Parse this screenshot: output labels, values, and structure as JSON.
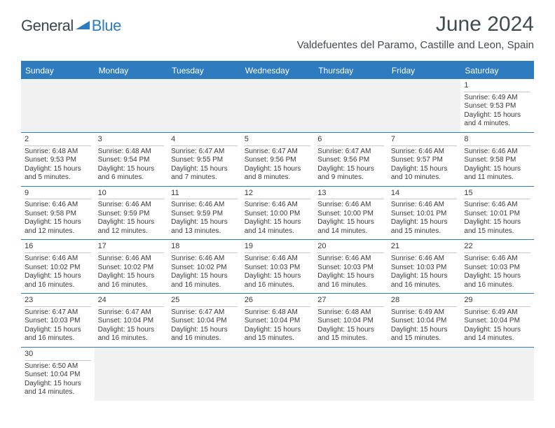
{
  "logo": {
    "dark": "General",
    "blue": "Blue"
  },
  "title": "June 2024",
  "subtitle": "Valdefuentes del Paramo, Castille and Leon, Spain",
  "colors": {
    "accent": "#2f7bbf",
    "headerText": "#ffffff",
    "bodyText": "#3a3a3a",
    "titleText": "#414b52",
    "blankBg": "#f1f1f1"
  },
  "dayNames": [
    "Sunday",
    "Monday",
    "Tuesday",
    "Wednesday",
    "Thursday",
    "Friday",
    "Saturday"
  ],
  "weeks": [
    [
      null,
      null,
      null,
      null,
      null,
      null,
      {
        "n": "1",
        "sr": "Sunrise: 6:49 AM",
        "ss": "Sunset: 9:53 PM",
        "d1": "Daylight: 15 hours",
        "d2": "and 4 minutes."
      }
    ],
    [
      {
        "n": "2",
        "sr": "Sunrise: 6:48 AM",
        "ss": "Sunset: 9:53 PM",
        "d1": "Daylight: 15 hours",
        "d2": "and 5 minutes."
      },
      {
        "n": "3",
        "sr": "Sunrise: 6:48 AM",
        "ss": "Sunset: 9:54 PM",
        "d1": "Daylight: 15 hours",
        "d2": "and 6 minutes."
      },
      {
        "n": "4",
        "sr": "Sunrise: 6:47 AM",
        "ss": "Sunset: 9:55 PM",
        "d1": "Daylight: 15 hours",
        "d2": "and 7 minutes."
      },
      {
        "n": "5",
        "sr": "Sunrise: 6:47 AM",
        "ss": "Sunset: 9:56 PM",
        "d1": "Daylight: 15 hours",
        "d2": "and 8 minutes."
      },
      {
        "n": "6",
        "sr": "Sunrise: 6:47 AM",
        "ss": "Sunset: 9:56 PM",
        "d1": "Daylight: 15 hours",
        "d2": "and 9 minutes."
      },
      {
        "n": "7",
        "sr": "Sunrise: 6:46 AM",
        "ss": "Sunset: 9:57 PM",
        "d1": "Daylight: 15 hours",
        "d2": "and 10 minutes."
      },
      {
        "n": "8",
        "sr": "Sunrise: 6:46 AM",
        "ss": "Sunset: 9:58 PM",
        "d1": "Daylight: 15 hours",
        "d2": "and 11 minutes."
      }
    ],
    [
      {
        "n": "9",
        "sr": "Sunrise: 6:46 AM",
        "ss": "Sunset: 9:58 PM",
        "d1": "Daylight: 15 hours",
        "d2": "and 12 minutes."
      },
      {
        "n": "10",
        "sr": "Sunrise: 6:46 AM",
        "ss": "Sunset: 9:59 PM",
        "d1": "Daylight: 15 hours",
        "d2": "and 12 minutes."
      },
      {
        "n": "11",
        "sr": "Sunrise: 6:46 AM",
        "ss": "Sunset: 9:59 PM",
        "d1": "Daylight: 15 hours",
        "d2": "and 13 minutes."
      },
      {
        "n": "12",
        "sr": "Sunrise: 6:46 AM",
        "ss": "Sunset: 10:00 PM",
        "d1": "Daylight: 15 hours",
        "d2": "and 14 minutes."
      },
      {
        "n": "13",
        "sr": "Sunrise: 6:46 AM",
        "ss": "Sunset: 10:00 PM",
        "d1": "Daylight: 15 hours",
        "d2": "and 14 minutes."
      },
      {
        "n": "14",
        "sr": "Sunrise: 6:46 AM",
        "ss": "Sunset: 10:01 PM",
        "d1": "Daylight: 15 hours",
        "d2": "and 15 minutes."
      },
      {
        "n": "15",
        "sr": "Sunrise: 6:46 AM",
        "ss": "Sunset: 10:01 PM",
        "d1": "Daylight: 15 hours",
        "d2": "and 15 minutes."
      }
    ],
    [
      {
        "n": "16",
        "sr": "Sunrise: 6:46 AM",
        "ss": "Sunset: 10:02 PM",
        "d1": "Daylight: 15 hours",
        "d2": "and 16 minutes."
      },
      {
        "n": "17",
        "sr": "Sunrise: 6:46 AM",
        "ss": "Sunset: 10:02 PM",
        "d1": "Daylight: 15 hours",
        "d2": "and 16 minutes."
      },
      {
        "n": "18",
        "sr": "Sunrise: 6:46 AM",
        "ss": "Sunset: 10:02 PM",
        "d1": "Daylight: 15 hours",
        "d2": "and 16 minutes."
      },
      {
        "n": "19",
        "sr": "Sunrise: 6:46 AM",
        "ss": "Sunset: 10:03 PM",
        "d1": "Daylight: 15 hours",
        "d2": "and 16 minutes."
      },
      {
        "n": "20",
        "sr": "Sunrise: 6:46 AM",
        "ss": "Sunset: 10:03 PM",
        "d1": "Daylight: 15 hours",
        "d2": "and 16 minutes."
      },
      {
        "n": "21",
        "sr": "Sunrise: 6:46 AM",
        "ss": "Sunset: 10:03 PM",
        "d1": "Daylight: 15 hours",
        "d2": "and 16 minutes."
      },
      {
        "n": "22",
        "sr": "Sunrise: 6:46 AM",
        "ss": "Sunset: 10:03 PM",
        "d1": "Daylight: 15 hours",
        "d2": "and 16 minutes."
      }
    ],
    [
      {
        "n": "23",
        "sr": "Sunrise: 6:47 AM",
        "ss": "Sunset: 10:03 PM",
        "d1": "Daylight: 15 hours",
        "d2": "and 16 minutes."
      },
      {
        "n": "24",
        "sr": "Sunrise: 6:47 AM",
        "ss": "Sunset: 10:04 PM",
        "d1": "Daylight: 15 hours",
        "d2": "and 16 minutes."
      },
      {
        "n": "25",
        "sr": "Sunrise: 6:47 AM",
        "ss": "Sunset: 10:04 PM",
        "d1": "Daylight: 15 hours",
        "d2": "and 16 minutes."
      },
      {
        "n": "26",
        "sr": "Sunrise: 6:48 AM",
        "ss": "Sunset: 10:04 PM",
        "d1": "Daylight: 15 hours",
        "d2": "and 15 minutes."
      },
      {
        "n": "27",
        "sr": "Sunrise: 6:48 AM",
        "ss": "Sunset: 10:04 PM",
        "d1": "Daylight: 15 hours",
        "d2": "and 15 minutes."
      },
      {
        "n": "28",
        "sr": "Sunrise: 6:49 AM",
        "ss": "Sunset: 10:04 PM",
        "d1": "Daylight: 15 hours",
        "d2": "and 15 minutes."
      },
      {
        "n": "29",
        "sr": "Sunrise: 6:49 AM",
        "ss": "Sunset: 10:04 PM",
        "d1": "Daylight: 15 hours",
        "d2": "and 14 minutes."
      }
    ],
    [
      {
        "n": "30",
        "sr": "Sunrise: 6:50 AM",
        "ss": "Sunset: 10:04 PM",
        "d1": "Daylight: 15 hours",
        "d2": "and 14 minutes."
      },
      null,
      null,
      null,
      null,
      null,
      null
    ]
  ]
}
